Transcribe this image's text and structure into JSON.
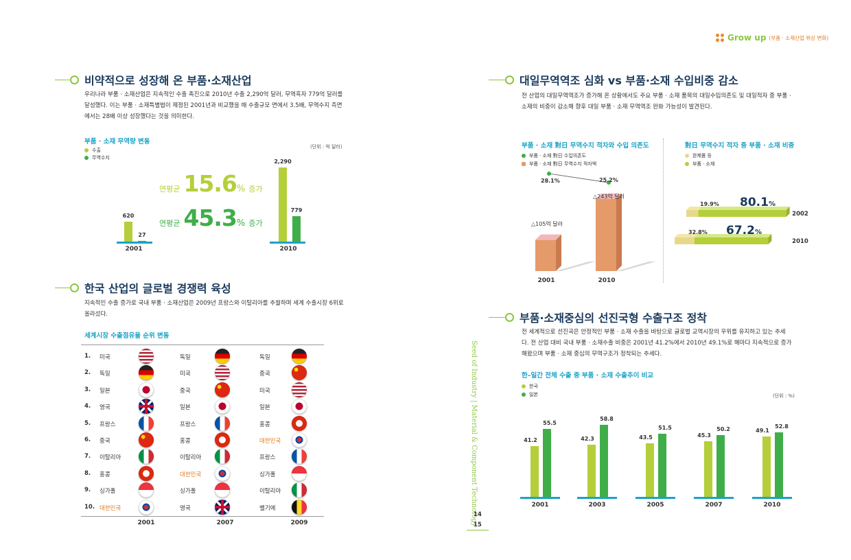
{
  "header": {
    "brand": "Grow up",
    "tagline": "(부품 · 소재산업 위상 변화)"
  },
  "side_vertical_text": "Seed of Industry | Material & Component Technology",
  "page_numbers": [
    "14",
    "15"
  ],
  "s1": {
    "title": "비약적으로 성장해 온 부품·소재산업",
    "paragraph": "우리나라 부품 · 소재산업은 지속적인 수출 촉진으로 2010년 수출 2,290억 달러, 무역흑자 779억 달러를 달성했다. 이는 부품 · 소재특별법이 제정된 2001년과 비교했을 때 수출규모 면에서 3.5배, 무역수지 측면에서는 28배 이상 성장했다는 것을 의미한다.",
    "chart_title": "부품 · 소재 무역량 변동",
    "legend": [
      "수출",
      "무역수지"
    ],
    "unit": "(단위 : 억 달러)",
    "growth1_label": "연평균",
    "growth1_value": "15.6",
    "growth1_pct": "%",
    "growth1_suffix": "증가",
    "growth2_label": "연평균",
    "growth2_value": "45.3",
    "growth2_pct": "%",
    "growth2_suffix": "증가"
  },
  "s2": {
    "title": "한국 산업의 글로벌 경쟁력 육성",
    "paragraph": "지속적인 수출 증가로 국내 부품 · 소재산업은 2009년 프랑스와 이탈리아를 추월하며 세계 수출시장 6위로 올라섰다.",
    "chart_title": "세계시장 수출점유율 순위 변동",
    "ranks": [
      "1.",
      "2.",
      "3.",
      "4.",
      "5.",
      "6.",
      "7.",
      "8.",
      "9.",
      "10."
    ],
    "years": [
      "2001",
      "2007",
      "2009"
    ],
    "col2001": [
      "미국",
      "독일",
      "일본",
      "영국",
      "프랑스",
      "중국",
      "이탈리아",
      "홍콩",
      "싱가폴",
      "대한민국"
    ],
    "col2007": [
      "독일",
      "미국",
      "중국",
      "일본",
      "프랑스",
      "홍콩",
      "이탈리아",
      "대한민국",
      "싱가폴",
      "영국"
    ],
    "col2009": [
      "독일",
      "중국",
      "미국",
      "일본",
      "홍콩",
      "대한민국",
      "프랑스",
      "싱가폴",
      "이탈리아",
      "벨기에"
    ]
  },
  "s3": {
    "title": "대일무역역조 심화 vs 부품·소재 수입비중 감소",
    "paragraph": "전 산업의 대일무역역조가 증가해 온 상황에서도 주요 부품 · 소재 품목의 대일수입의존도 및 대일적자 중 부품 · 소재의 비중이 감소해 향후 대일 부품 · 소재 무역역조 완화 가능성이 발견된다.",
    "left_title": "부품 · 소재 對日 무역수지 적자와 수입 의존도",
    "left_legend": [
      "부품 · 소재 對日 수입의존도",
      "부품 · 소재 對日 무역수지 적자액"
    ],
    "dep_2001": "28.1%",
    "dep_2010": "25.2%",
    "deficit_2001": "△105억 달러",
    "deficit_2010": "△243억 달러",
    "right_title": "對日 무역수지 적자 중 부품 · 소재 비중",
    "right_legend": [
      "완제품 등",
      "부품 · 소재"
    ],
    "r2002_small": "19.9%",
    "r2002_big": "80.1",
    "r2002_year": "2002",
    "r2010_small": "32.8%",
    "r2010_big": "67.2",
    "r2010_year": "2010",
    "pct": "%"
  },
  "s4": {
    "title": "부품·소재중심의 선진국형 수출구조 정착",
    "paragraph": "전 세계적으로 선진국은 안정적인 부품 · 소재 수출을 바탕으로 글로벌 교역시장의 우위를 유지하고 있는 추세다. 전 산업 대비 국내 부품 · 소재수출 비중은 2001년 41.2%에서 2010년 49.1%로 해마다 지속적으로 증가해왔으며 부품 · 소재 중심의 무역구조가 정착되는 추세다.",
    "chart_title": "한–일간 전체 수출 중 부품 · 소재 수출추이 비교",
    "legend": [
      "한국",
      "일본"
    ],
    "unit": "(단위 : %)"
  },
  "colors": {
    "light_green": "#b4cf3a",
    "dark_green": "#3fae49",
    "cyan": "#1ba3c6",
    "navy": "#1a3a5c",
    "orange_bar": "#e59a6a",
    "korea_text": "#e07a1f"
  },
  "chart_data": [
    {
      "type": "bar",
      "title": "부품 · 소재 무역량 변동",
      "categories": [
        "2001",
        "2010"
      ],
      "series": [
        {
          "name": "수출",
          "values": [
            620,
            2290
          ]
        },
        {
          "name": "무역수지",
          "values": [
            27,
            779
          ]
        }
      ]
    },
    {
      "type": "bar",
      "title": "부품 · 소재 對日 무역수지 적자와 수입 의존도",
      "categories": [
        "2001",
        "2010"
      ],
      "series": [
        {
          "name": "부품 · 소재 對日 무역수지 적자액",
          "values": [
            105,
            243
          ]
        },
        {
          "name": "부품 · 소재 對日 수입의존도",
          "values": [
            28.1,
            25.2
          ]
        }
      ]
    },
    {
      "type": "bar",
      "title": "對日 무역수지 적자 중 부품 · 소재 비중",
      "categories": [
        "2002",
        "2010"
      ],
      "series": [
        {
          "name": "완제품 등",
          "values": [
            19.9,
            32.8
          ]
        },
        {
          "name": "부품 · 소재",
          "values": [
            80.1,
            67.2
          ]
        }
      ]
    },
    {
      "type": "bar",
      "title": "한–일간 전체 수출 중 부품 · 소재 수출추이 비교",
      "categories": [
        "2001",
        "2003",
        "2005",
        "2007",
        "2010"
      ],
      "series": [
        {
          "name": "한국",
          "values": [
            41.2,
            42.3,
            43.5,
            45.3,
            49.1
          ]
        },
        {
          "name": "일본",
          "values": [
            55.5,
            58.8,
            51.5,
            50.2,
            52.8
          ]
        }
      ]
    }
  ]
}
